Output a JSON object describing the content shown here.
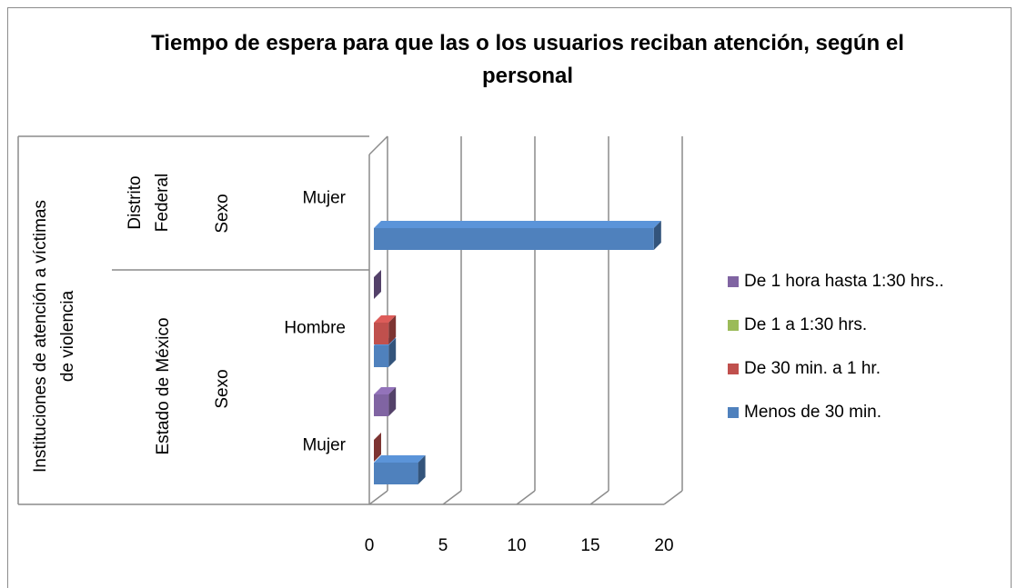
{
  "chart_data": {
    "type": "bar3d_horizontal",
    "title": "Tiempo de espera para que las o los usuarios reciban atención, según el personal",
    "category_groups": {
      "institution": "Instituciones de atención a víctimas de violencia",
      "regions": [
        {
          "name": "Distrito Federal",
          "sub": "Sexo"
        },
        {
          "name": "Estado de México",
          "sub": "Sexo"
        }
      ]
    },
    "categories": [
      "Mujer",
      "Hombre",
      "Mujer"
    ],
    "series": [
      {
        "name": "Menos de 30 min.",
        "color": "#4f81bd",
        "values": [
          19,
          1,
          3
        ]
      },
      {
        "name": "De 30 min. a 1 hr.",
        "color": "#c0504d",
        "values": [
          null,
          1,
          0
        ]
      },
      {
        "name": "De 1 a 1:30 hrs.",
        "color": "#9bbb59",
        "values": [
          null,
          null,
          null
        ]
      },
      {
        "name": "De 1 hora hasta 1:30 hrs..",
        "color": "#8064a2",
        "values": [
          null,
          0,
          1
        ]
      }
    ],
    "xlim": [
      0,
      20
    ],
    "xticks": [
      0,
      5,
      10,
      15,
      20
    ],
    "grid": true,
    "legend": "right"
  }
}
